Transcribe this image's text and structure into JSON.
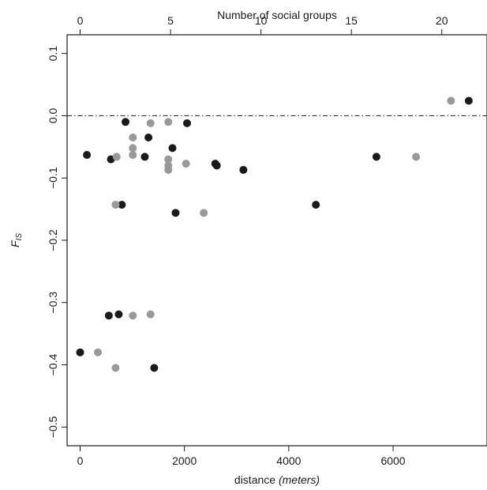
{
  "chart_data": {
    "type": "scatter",
    "title": "",
    "xlabel_main": "distance",
    "xlabel_unit": "(meters)",
    "ylabel_main": "F",
    "ylabel_sub": "IS",
    "x2label": "Number of social groups",
    "xlim": [
      -250,
      7800
    ],
    "ylim": [
      -0.53,
      0.13
    ],
    "x2lim": [
      -0.72,
      22.5
    ],
    "x_ticks": [
      0,
      2000,
      4000,
      6000
    ],
    "x_tick_labels": [
      "0",
      "2000",
      "4000",
      "6000"
    ],
    "x2_ticks": [
      0,
      5,
      10,
      15,
      20
    ],
    "x2_tick_labels": [
      "0",
      "5",
      "10",
      "15",
      "20"
    ],
    "y_ticks": [
      -0.5,
      -0.4,
      -0.3,
      -0.2,
      -0.1,
      0.0,
      0.1
    ],
    "y_tick_labels": [
      "−0.5",
      "−0.4",
      "−0.3",
      "−0.2",
      "−0.1",
      "0.0",
      "0.1"
    ],
    "reference_line": {
      "y": 0.0,
      "style": "dash-dot"
    },
    "grid": false,
    "series": [
      {
        "color": "#1a1a1a",
        "points": [
          {
            "x": 0,
            "y": -0.38
          },
          {
            "x": 130,
            "y": -0.063
          },
          {
            "x": 550,
            "y": -0.321
          },
          {
            "x": 590,
            "y": -0.07
          },
          {
            "x": 740,
            "y": -0.319
          },
          {
            "x": 800,
            "y": -0.143
          },
          {
            "x": 870,
            "y": -0.01
          },
          {
            "x": 1240,
            "y": -0.066
          },
          {
            "x": 1310,
            "y": -0.035
          },
          {
            "x": 1420,
            "y": -0.405
          },
          {
            "x": 1770,
            "y": -0.052
          },
          {
            "x": 1830,
            "y": -0.156
          },
          {
            "x": 2050,
            "y": -0.012
          },
          {
            "x": 2590,
            "y": -0.077
          },
          {
            "x": 2620,
            "y": -0.08
          },
          {
            "x": 3130,
            "y": -0.087
          },
          {
            "x": 4520,
            "y": -0.143
          },
          {
            "x": 5680,
            "y": -0.066
          },
          {
            "x": 7450,
            "y": 0.024
          }
        ]
      },
      {
        "color": "#999999",
        "points": [
          {
            "x": 340,
            "y": -0.38
          },
          {
            "x": 680,
            "y": -0.143
          },
          {
            "x": 680,
            "y": -0.405
          },
          {
            "x": 700,
            "y": -0.066
          },
          {
            "x": 1010,
            "y": -0.035
          },
          {
            "x": 1010,
            "y": -0.052
          },
          {
            "x": 1010,
            "y": -0.063
          },
          {
            "x": 1010,
            "y": -0.321
          },
          {
            "x": 1350,
            "y": -0.012
          },
          {
            "x": 1350,
            "y": -0.319
          },
          {
            "x": 1690,
            "y": -0.01
          },
          {
            "x": 1690,
            "y": -0.07
          },
          {
            "x": 1690,
            "y": -0.08
          },
          {
            "x": 1690,
            "y": -0.087
          },
          {
            "x": 2030,
            "y": -0.077
          },
          {
            "x": 2370,
            "y": -0.156
          },
          {
            "x": 6440,
            "y": -0.066
          },
          {
            "x": 7110,
            "y": 0.024
          }
        ]
      }
    ]
  }
}
